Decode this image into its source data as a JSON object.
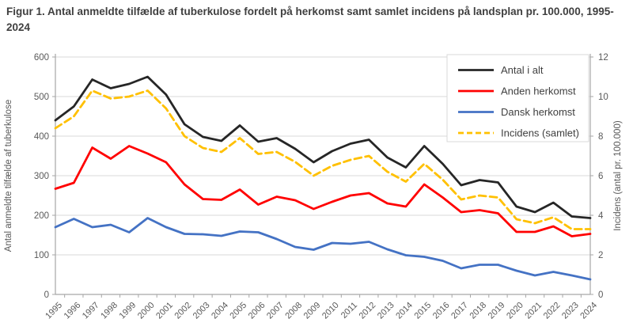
{
  "title": "Figur 1. Antal anmeldte tilfælde af tuberkulose fordelt på herkomst samt samlet incidens på landsplan pr. 100.000, 1995-2024",
  "chart_data": {
    "type": "line",
    "categories": [
      "1995",
      "1996",
      "1997",
      "1998",
      "1999",
      "2000",
      "2001",
      "2002",
      "2003",
      "2004",
      "2005",
      "2006",
      "2007",
      "2008",
      "2009",
      "2010",
      "2011",
      "2012",
      "2013",
      "2014",
      "2015",
      "2016",
      "2017",
      "2018",
      "2019",
      "2020",
      "2021",
      "2022",
      "2023",
      "2024"
    ],
    "series": [
      {
        "name": "Antal i alt",
        "axis": "left",
        "color": "#262626",
        "dash": "solid",
        "values": [
          440,
          475,
          543,
          521,
          532,
          550,
          505,
          430,
          398,
          388,
          427,
          386,
          395,
          368,
          334,
          362,
          381,
          391,
          346,
          321,
          375,
          330,
          276,
          289,
          283,
          222,
          208,
          232,
          197,
          193
        ]
      },
      {
        "name": "Anden herkomst",
        "axis": "left",
        "color": "#ff0000",
        "dash": "solid",
        "values": [
          267,
          282,
          371,
          343,
          375,
          356,
          334,
          278,
          241,
          239,
          265,
          227,
          247,
          238,
          216,
          234,
          250,
          256,
          230,
          222,
          278,
          245,
          208,
          213,
          205,
          158,
          158,
          172,
          147,
          153
        ]
      },
      {
        "name": "Dansk herkomst",
        "axis": "left",
        "color": "#4472c4",
        "dash": "solid",
        "values": [
          170,
          191,
          170,
          176,
          157,
          193,
          170,
          153,
          152,
          148,
          159,
          157,
          140,
          120,
          113,
          130,
          128,
          133,
          114,
          99,
          95,
          85,
          66,
          75,
          75,
          60,
          48,
          57,
          48,
          38
        ]
      },
      {
        "name": "Incidens (samlet)",
        "axis": "right",
        "color": "#ffc000",
        "dash": "dashed",
        "values": [
          8.4,
          9.0,
          10.3,
          9.9,
          10.0,
          10.3,
          9.4,
          8.0,
          7.4,
          7.2,
          7.9,
          7.1,
          7.2,
          6.7,
          6.0,
          6.5,
          6.8,
          7.0,
          6.2,
          5.7,
          6.6,
          5.8,
          4.8,
          5.0,
          4.9,
          3.8,
          3.6,
          3.9,
          3.3,
          3.3
        ]
      }
    ],
    "ylabel_left": "Antal anmeldte tilfælde af tuberkulose",
    "ylabel_right": "Incidens (antal pr. 100.000)",
    "ylim_left": [
      0,
      600
    ],
    "yticks_left": [
      0,
      100,
      200,
      300,
      400,
      500,
      600
    ],
    "ylim_right": [
      0,
      12
    ],
    "yticks_right": [
      0,
      2,
      4,
      6,
      8,
      10,
      12
    ],
    "grid": "horizontal",
    "legend_position": "top-right"
  },
  "colors": {
    "grid": "#d9d9d9",
    "axis": "#a6a6a6",
    "tick_text": "#595959",
    "axis_title_text": "#595959",
    "legend_text": "#404040",
    "legend_border": "#d9d9d9",
    "background": "#ffffff"
  }
}
